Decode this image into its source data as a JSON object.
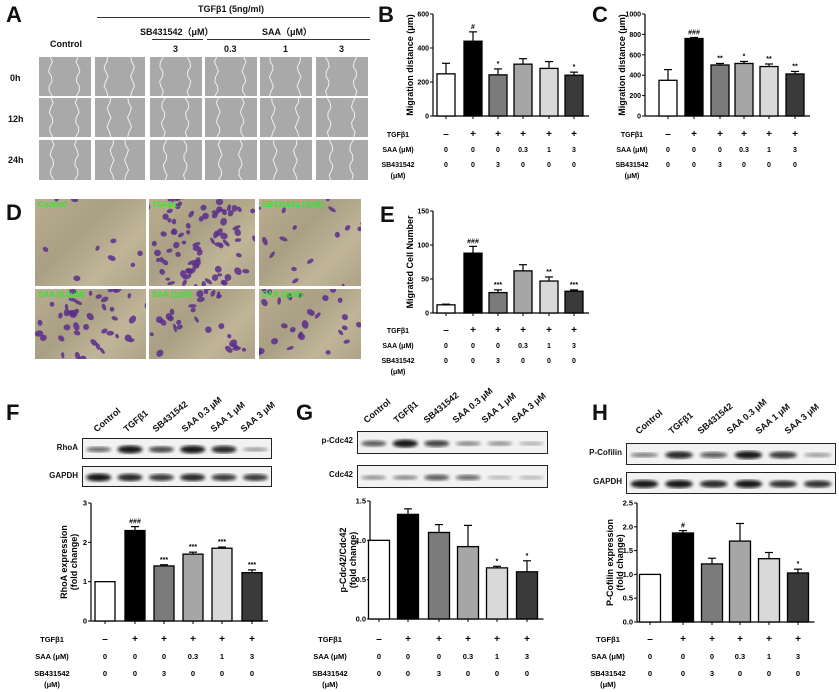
{
  "panels": {
    "A": "A",
    "B": "B",
    "C": "C",
    "D": "D",
    "E": "E",
    "F": "F",
    "G": "G",
    "H": "H"
  },
  "panel_a": {
    "header": "TGFβ1 (5ng/ml)",
    "sb_header": "SB431542（μM）",
    "saa_header": "SAA（μM）",
    "control": "Control",
    "doses": [
      "3",
      "0.3",
      "1",
      "3"
    ],
    "rows": [
      "0h",
      "12h",
      "24h"
    ]
  },
  "panel_d": {
    "labels": [
      "Control",
      "TGFβ1",
      "SB431542 (3μM)",
      "SAA (0.3μM)",
      "SAA (1μM)",
      "SAA (3μM)"
    ]
  },
  "conditions": {
    "row_labels": [
      "TGFβ1",
      "SAA (μM)",
      "SB431542",
      "(μM)"
    ],
    "tgf": [
      "–",
      "+",
      "+",
      "+",
      "+",
      "+"
    ],
    "saa": [
      "0",
      "0",
      "0",
      "0.3",
      "1",
      "3"
    ],
    "sb": [
      "0",
      "0",
      "3",
      "0",
      "0",
      "0"
    ]
  },
  "lanes": [
    "Control",
    "TGFβ1",
    "SB431542",
    "SAA 0.3 μM",
    "SAA 1 μM",
    "SAA 3 μM"
  ],
  "blots": {
    "F": [
      "RhoA",
      "GAPDH"
    ],
    "G": [
      "p-Cdc42",
      "Cdc42"
    ],
    "H": [
      "P-Cofilin",
      "GAPDH"
    ]
  },
  "colors": {
    "bars": [
      "#ffffff",
      "#000000",
      "#7b7b7b",
      "#a6a6a6",
      "#d9d9d9",
      "#3a3a3a"
    ],
    "micro_label": "#33e633"
  },
  "chart_data": [
    {
      "id": "B",
      "type": "bar",
      "ylabel": "Migration distance (μm)",
      "ylim": [
        0,
        600
      ],
      "ticks": [
        "0",
        "200",
        "400",
        "600"
      ],
      "tick_values": [
        0,
        200,
        400,
        600
      ],
      "values": [
        248,
        440,
        242,
        305,
        280,
        240
      ],
      "errors": [
        62,
        55,
        35,
        32,
        40,
        18
      ],
      "sig": [
        "",
        "#",
        "*",
        "",
        "",
        "*"
      ]
    },
    {
      "id": "C",
      "type": "bar",
      "ylabel": "Migration distance (μm)",
      "ylim": [
        0,
        1000
      ],
      "ticks": [
        "0",
        "200",
        "400",
        "600",
        "800",
        "1000"
      ],
      "tick_values": [
        0,
        200,
        400,
        600,
        800,
        1000
      ],
      "values": [
        350,
        760,
        500,
        515,
        485,
        412
      ],
      "errors": [
        105,
        10,
        15,
        20,
        25,
        25
      ],
      "sig": [
        "",
        "###",
        "**",
        "*",
        "**",
        "**"
      ]
    },
    {
      "id": "E",
      "type": "bar",
      "ylabel": "Migrated Cell Number",
      "ylim": [
        0,
        150
      ],
      "ticks": [
        "0",
        "50",
        "100",
        "150"
      ],
      "tick_values": [
        0,
        50,
        100,
        150
      ],
      "values": [
        12,
        88,
        30,
        62,
        47,
        32
      ],
      "errors": [
        1,
        10,
        4,
        9,
        6,
        2
      ],
      "sig": [
        "",
        "###",
        "***",
        "",
        "**",
        "***"
      ]
    },
    {
      "id": "F",
      "type": "bar",
      "ylabel": "RhoA expression",
      "ylabel2": "(fold change)",
      "ylim": [
        0,
        3
      ],
      "ticks": [
        "0",
        "1",
        "2",
        "3"
      ],
      "tick_values": [
        0,
        1,
        2,
        3
      ],
      "values": [
        1,
        2.3,
        1.4,
        1.7,
        1.85,
        1.23
      ],
      "errors": [
        0,
        0.1,
        0.03,
        0.05,
        0.03,
        0.07
      ],
      "sig": [
        "",
        "###",
        "***",
        "***",
        "***",
        "***"
      ]
    },
    {
      "id": "G",
      "type": "bar",
      "ylabel": "p-Cdc42/Cdc42",
      "ylabel2": "(fold change)",
      "ylim": [
        0,
        1.5
      ],
      "ticks": [
        "0.0",
        "0.5",
        "1.0",
        "1.5"
      ],
      "tick_values": [
        0,
        0.5,
        1,
        1.5
      ],
      "values": [
        1,
        1.33,
        1.1,
        0.92,
        0.65,
        0.6
      ],
      "errors": [
        0,
        0.07,
        0.1,
        0.27,
        0.02,
        0.14
      ],
      "sig": [
        "",
        "",
        "",
        "",
        "*",
        "*"
      ]
    },
    {
      "id": "H",
      "type": "bar",
      "ylabel": "P-Cofilin expression",
      "ylabel2": "(fold change)",
      "ylim": [
        0,
        2.5
      ],
      "ticks": [
        "0.0",
        "0.5",
        "1.0",
        "1.5",
        "2.0",
        "2.5"
      ],
      "tick_values": [
        0,
        0.5,
        1,
        1.5,
        2,
        2.5
      ],
      "values": [
        1,
        1.87,
        1.22,
        1.7,
        1.33,
        1.03
      ],
      "errors": [
        0,
        0.05,
        0.12,
        0.37,
        0.13,
        0.08
      ],
      "sig": [
        "",
        "#",
        "",
        "",
        "",
        "*"
      ]
    }
  ]
}
